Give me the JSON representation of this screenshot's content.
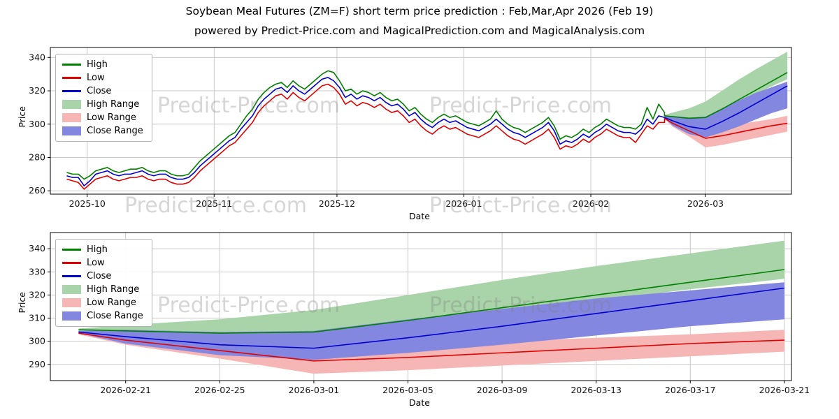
{
  "header": {
    "title": "Soybean Meal Futures (ZM=F) short term price prediction : Feb,Mar,Apr 2026 (Feb 19)",
    "subtitle": "powered by Predict-Price.com and MagicalPrediction.com and MagicalAnalysis.com"
  },
  "watermark": {
    "text": "Predict-Price.com"
  },
  "palette": {
    "high_line": "#008000",
    "low_line": "#e00000",
    "close_line": "#0000cd",
    "high_band": "#a9d3a9",
    "low_band": "#f6b6b6",
    "close_band": "#8487e0",
    "grid": "#c8c8c8",
    "axis": "#000000"
  },
  "prediction": {
    "dates": [
      "2026-02-19",
      "2026-02-21",
      "2026-02-25",
      "2026-03-01",
      "2026-03-05",
      "2026-03-09",
      "2026-03-13",
      "2026-03-17",
      "2026-03-21"
    ],
    "days": [
      0,
      2,
      6,
      10,
      14,
      18,
      22,
      26,
      30
    ],
    "close": [
      304,
      302,
      298.5,
      297,
      301.5,
      306.5,
      312,
      317.5,
      323
    ],
    "close_range": {
      "upper": [
        304.5,
        305,
        304,
        304.5,
        309.5,
        314,
        318.5,
        322,
        325.5
      ],
      "lower": [
        303.5,
        299,
        294,
        292,
        295,
        298.5,
        302.5,
        306.5,
        309.5
      ]
    },
    "high": [
      305,
      304.5,
      303.5,
      304,
      309,
      314.5,
      320,
      325.5,
      331
    ],
    "high_range": {
      "upper": [
        305.5,
        307,
        309.5,
        313.5,
        320,
        326.5,
        332.5,
        338,
        343.5
      ],
      "lower": [
        304.5,
        303,
        301.5,
        302.5,
        307,
        312,
        317.5,
        322.5,
        327
      ]
    },
    "low": [
      303.5,
      300.5,
      296,
      291.5,
      293,
      295,
      297,
      299,
      300.5
    ],
    "low_range": {
      "upper": [
        304,
        302.5,
        299.5,
        297,
        298.5,
        300,
        301.5,
        303,
        305
      ],
      "lower": [
        303,
        298.5,
        292.5,
        286,
        287.5,
        289.5,
        291.5,
        293.5,
        295.5
      ]
    }
  },
  "chart_data": [
    {
      "type": "line",
      "name": "history-with-forecast",
      "ylabel": "Price",
      "xlabel": "Date",
      "ylim": [
        258,
        346
      ],
      "yticks": [
        260,
        280,
        300,
        320,
        340
      ],
      "xlim": [
        -4,
        177
      ],
      "xticks": [
        {
          "pos": 5,
          "label": "2025-10"
        },
        {
          "pos": 36,
          "label": "2025-11"
        },
        {
          "pos": 66,
          "label": "2025-12"
        },
        {
          "pos": 97,
          "label": "2026-01"
        },
        {
          "pos": 128,
          "label": "2026-02"
        },
        {
          "pos": 156,
          "label": "2026-03"
        }
      ],
      "grid": true,
      "legend_position": "upper-left",
      "pred_day_offset": 146,
      "legend": [
        {
          "label": "High",
          "swatch": "line",
          "color": "#008000"
        },
        {
          "label": "Low",
          "swatch": "line",
          "color": "#e00000"
        },
        {
          "label": "Close",
          "swatch": "line",
          "color": "#0000cd"
        },
        {
          "label": "High Range",
          "swatch": "patch",
          "color": "#a9d3a9"
        },
        {
          "label": "Low Range",
          "swatch": "patch",
          "color": "#f6b6b6"
        },
        {
          "label": "Close Range",
          "swatch": "patch",
          "color": "#8487e0"
        }
      ],
      "historical": {
        "x_start": 0,
        "x_end": 146,
        "high": [
          271,
          270,
          270,
          267,
          269,
          272,
          273,
          274,
          272,
          271,
          272,
          273,
          273,
          274,
          272,
          271,
          272,
          272,
          270,
          269,
          269,
          270,
          274,
          278,
          281,
          284,
          287,
          290,
          293,
          295,
          300,
          305,
          309,
          315,
          319,
          322,
          324,
          325,
          322,
          326,
          323,
          321,
          324,
          327,
          330,
          332,
          331,
          326,
          320,
          321,
          318,
          320,
          319,
          317,
          319,
          316,
          314,
          315,
          312,
          308,
          310,
          306,
          303,
          301,
          304,
          306,
          304,
          305,
          303,
          301,
          300,
          299,
          301,
          303,
          308,
          303,
          300,
          298,
          297,
          295,
          297,
          299,
          301,
          304,
          299,
          291,
          293,
          292,
          294,
          297,
          295,
          298,
          300,
          303,
          301,
          299,
          298,
          298,
          297,
          300,
          310,
          303,
          312,
          307
        ],
        "low": [
          267,
          266,
          265,
          261,
          264,
          267,
          268,
          269,
          267,
          266,
          267,
          268,
          268,
          269,
          267,
          266,
          267,
          267,
          265,
          264,
          264,
          265,
          268,
          272,
          275,
          278,
          281,
          284,
          287,
          289,
          293,
          297,
          301,
          307,
          311,
          314,
          317,
          318,
          315,
          319,
          316,
          314,
          317,
          320,
          323,
          324,
          322,
          318,
          312,
          314,
          311,
          313,
          312,
          310,
          312,
          309,
          307,
          308,
          305,
          301,
          303,
          299,
          296,
          294,
          297,
          299,
          297,
          298,
          296,
          294,
          293,
          292,
          294,
          296,
          299,
          296,
          293,
          291,
          290,
          288,
          290,
          292,
          294,
          297,
          292,
          285,
          287,
          286,
          288,
          291,
          289,
          292,
          294,
          297,
          295,
          293,
          292,
          292,
          289,
          294,
          299,
          297,
          301,
          301
        ],
        "close": [
          269,
          268,
          268,
          263,
          266,
          270,
          271,
          272,
          270,
          269,
          270,
          270,
          271,
          272,
          270,
          269,
          270,
          270,
          268,
          267,
          267,
          268,
          271,
          275,
          278,
          281,
          284,
          287,
          290,
          292,
          297,
          301,
          305,
          311,
          315,
          318,
          321,
          322,
          319,
          323,
          320,
          318,
          321,
          324,
          327,
          328,
          326,
          322,
          316,
          318,
          315,
          317,
          316,
          314,
          316,
          313,
          311,
          312,
          309,
          305,
          307,
          303,
          300,
          298,
          301,
          303,
          301,
          302,
          300,
          298,
          297,
          296,
          298,
          300,
          303,
          300,
          297,
          295,
          294,
          292,
          294,
          296,
          298,
          301,
          296,
          288,
          290,
          289,
          291,
          294,
          292,
          295,
          297,
          300,
          298,
          296,
          295,
          295,
          294,
          297,
          303,
          300,
          305,
          304
        ]
      }
    },
    {
      "type": "line",
      "name": "forecast-detail",
      "ylabel": "Price",
      "xlabel": "Date",
      "ylim": [
        283,
        347
      ],
      "yticks": [
        290,
        300,
        310,
        320,
        330,
        340
      ],
      "xlim": [
        -1.2,
        30.3
      ],
      "xticks": [
        {
          "pos": 2,
          "label": "2026-02-21"
        },
        {
          "pos": 6,
          "label": "2026-02-25"
        },
        {
          "pos": 10,
          "label": "2026-03-01"
        },
        {
          "pos": 14,
          "label": "2026-03-05"
        },
        {
          "pos": 18,
          "label": "2026-03-09"
        },
        {
          "pos": 22,
          "label": "2026-03-13"
        },
        {
          "pos": 26,
          "label": "2026-03-17"
        },
        {
          "pos": 30,
          "label": "2026-03-21"
        }
      ],
      "grid": true,
      "legend_position": "upper-left",
      "pred_day_offset": 0,
      "legend": [
        {
          "label": "High",
          "swatch": "line",
          "color": "#008000"
        },
        {
          "label": "Low",
          "swatch": "line",
          "color": "#e00000"
        },
        {
          "label": "Close",
          "swatch": "line",
          "color": "#0000cd"
        },
        {
          "label": "High Range",
          "swatch": "patch",
          "color": "#a9d3a9"
        },
        {
          "label": "Low Range",
          "swatch": "patch",
          "color": "#f6b6b6"
        },
        {
          "label": "Close Range",
          "swatch": "patch",
          "color": "#8487e0"
        }
      ]
    }
  ]
}
